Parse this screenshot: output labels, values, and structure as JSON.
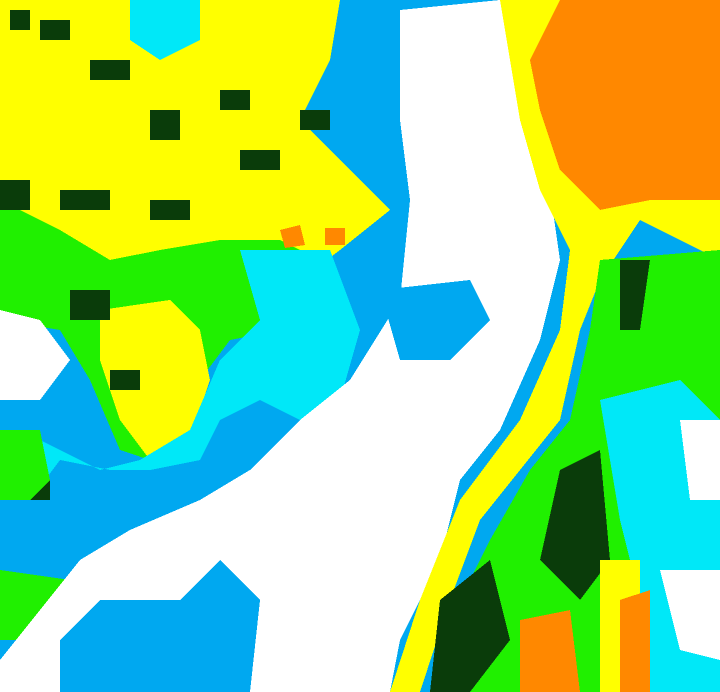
{
  "map": {
    "type": "classified-raster",
    "class_colors": {
      "white": "#ffffff",
      "light_blue": "#00a8f0",
      "cyan": "#00e8f8",
      "green": "#20f000",
      "dark_green": "#0a3c0a",
      "yellow": "#ffff00",
      "orange": "#ff8800"
    }
  }
}
